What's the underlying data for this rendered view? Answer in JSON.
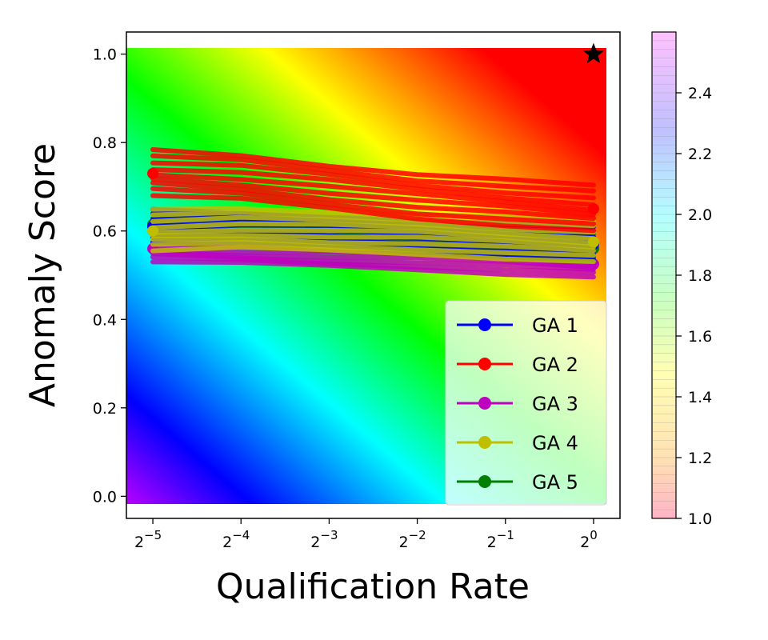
{
  "chart_data": {
    "type": "line",
    "title": "",
    "xlabel": "Qualification Rate",
    "ylabel": "Anomaly Score",
    "xscale": "log2",
    "xlim": [
      -5.3,
      0.3
    ],
    "ylim": [
      -0.05,
      1.05
    ],
    "x_ticks": [
      {
        "base": "2",
        "exp": "−5",
        "value": -5
      },
      {
        "base": "2",
        "exp": "−4",
        "value": -4
      },
      {
        "base": "2",
        "exp": "−3",
        "value": -3
      },
      {
        "base": "2",
        "exp": "−2",
        "value": -2
      },
      {
        "base": "2",
        "exp": "−1",
        "value": -1
      },
      {
        "base": "2",
        "exp": "0",
        "value": 0
      }
    ],
    "y_ticks": [
      "0.0",
      "0.2",
      "0.4",
      "0.6",
      "0.8",
      "1.0"
    ],
    "background_gradient": "rainbow color field, distance from ideal point (top-right)",
    "ideal_point": {
      "x": 0,
      "y": 1.0,
      "marker": "star"
    },
    "x": [
      -5,
      -4,
      -3,
      -2,
      -1,
      0
    ],
    "series": [
      {
        "name": "GA 1",
        "color": "#0000ff",
        "values": [
          0.61,
          0.605,
          0.6,
          0.59,
          0.58,
          0.57
        ]
      },
      {
        "name": "GA 2",
        "color": "#ff0000",
        "values": [
          0.73,
          0.72,
          0.7,
          0.68,
          0.665,
          0.65
        ]
      },
      {
        "name": "GA 3",
        "color": "#bf00bf",
        "values": [
          0.56,
          0.555,
          0.55,
          0.545,
          0.535,
          0.525
        ]
      },
      {
        "name": "GA 4",
        "color": "#bfbf00",
        "values": [
          0.6,
          0.605,
          0.6,
          0.595,
          0.585,
          0.575
        ]
      },
      {
        "name": "GA 5",
        "color": "#008000",
        "values": [
          0.615,
          0.61,
          0.6,
          0.59,
          0.575,
          0.56
        ]
      }
    ],
    "legend_position": "lower-right",
    "colorbar": {
      "ticks": [
        "1.0",
        "1.2",
        "1.4",
        "1.6",
        "1.8",
        "2.0",
        "2.2",
        "2.4"
      ],
      "range": [
        1.0,
        2.6
      ]
    }
  }
}
